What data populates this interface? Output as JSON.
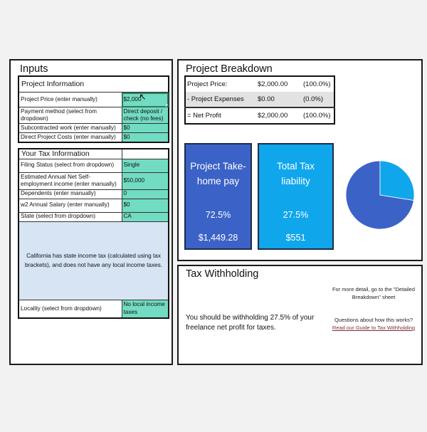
{
  "inputs": {
    "title": "Inputs",
    "project_info": {
      "header": "Project Information",
      "rows": [
        {
          "label": "Project Price (enter manually)",
          "value": "$2,000"
        },
        {
          "label": "Payment method (select from dropdown)",
          "value": "Direct deposit / check (no fees)"
        },
        {
          "label": "Subcontracted work (enter manually)",
          "value": "$0"
        },
        {
          "label": "Direct Project Costs (enter manually)",
          "value": "$0"
        }
      ]
    },
    "tax_info": {
      "header": "Your Tax Information",
      "rows": [
        {
          "label": "Filing Status (select from dropdown)",
          "value": "Single"
        },
        {
          "label": "Estimated Annual Net Self-employment income (enter manually)",
          "value": "$50,000"
        },
        {
          "label": "Dependents (enter manually)",
          "value": "0"
        },
        {
          "label": "w2 Annual Salary (enter manually)",
          "value": "$0"
        },
        {
          "label": "State (select from dropdown)",
          "value": "CA"
        }
      ],
      "state_note": "California has state income tax (calculated using tax brackets), and does not have any local income taxes.",
      "locality": {
        "label": "Locality (select from dropdown)",
        "value": "No local income taxes"
      }
    },
    "cursor_icon": "mouse-pointer"
  },
  "breakdown": {
    "title": "Project Breakdown",
    "rows": [
      {
        "label": "Project Price:",
        "amount": "$2,000.00",
        "pct": "(100.0%)"
      },
      {
        "label": "- Project Expenses",
        "amount": "$0.00",
        "pct": "(0.0%)"
      },
      {
        "label": "= Net Profit",
        "amount": "$2,000.00",
        "pct": "(100.0%)"
      }
    ],
    "takehome": {
      "title": "Project Take-home pay",
      "pct": "72.5%",
      "amount": "$1,449.28",
      "color": "#3b62c6"
    },
    "tax": {
      "title": "Total Tax liability",
      "pct": "27.5%",
      "amount": "$551",
      "color": "#0fa6ec"
    }
  },
  "chart_data": {
    "type": "pie",
    "title": "",
    "categories": [
      "Project Take-home pay",
      "Total Tax liability"
    ],
    "values": [
      72.5,
      27.5
    ],
    "colors": [
      "#3b62c6",
      "#0fa6ec"
    ],
    "legend": "none"
  },
  "withholding": {
    "title": "Tax Withholding",
    "message": "You should be withholding 27.5% of your freelance net profit for taxes.",
    "detail_note": "For more detail, go to the \"Detailed Breakdown\" sheet",
    "questions": "Questions about how this works?",
    "link": "Read our Guide to Tax Withholding"
  }
}
